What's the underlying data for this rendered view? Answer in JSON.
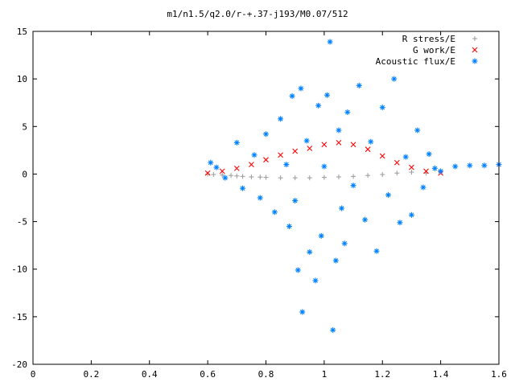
{
  "chart_data": {
    "type": "scatter",
    "title": "m1/n1.5/q2.0/r-+.37-j193/M0.07/512",
    "xlabel": "",
    "ylabel": "",
    "xlim": [
      0,
      1.6
    ],
    "ylim": [
      -20,
      15
    ],
    "xticks": [
      "0",
      "0.2",
      "0.4",
      "0.6",
      "0.8",
      "1",
      "1.2",
      "1.4",
      "1.6"
    ],
    "yticks": [
      "-20",
      "-15",
      "-10",
      "-5",
      "0",
      "5",
      "10",
      "15"
    ],
    "legend_position": "top-right",
    "series": [
      {
        "name": "R stress/E",
        "marker": "plus",
        "color": "#a0a0a0",
        "points": [
          [
            0.6,
            0.0
          ],
          [
            0.62,
            -0.05
          ],
          [
            0.65,
            -0.1
          ],
          [
            0.68,
            -0.15
          ],
          [
            0.7,
            -0.2
          ],
          [
            0.72,
            -0.25
          ],
          [
            0.75,
            -0.3
          ],
          [
            0.78,
            -0.32
          ],
          [
            0.8,
            -0.35
          ],
          [
            0.85,
            -0.4
          ],
          [
            0.9,
            -0.4
          ],
          [
            0.95,
            -0.4
          ],
          [
            1.0,
            -0.35
          ],
          [
            1.05,
            -0.3
          ],
          [
            1.1,
            -0.25
          ],
          [
            1.15,
            -0.15
          ],
          [
            1.2,
            -0.05
          ],
          [
            1.25,
            0.1
          ],
          [
            1.3,
            0.2
          ],
          [
            1.35,
            0.1
          ]
        ]
      },
      {
        "name": "G work/E",
        "marker": "cross",
        "color": "#ff0000",
        "points": [
          [
            0.6,
            0.1
          ],
          [
            0.65,
            0.3
          ],
          [
            0.7,
            0.6
          ],
          [
            0.75,
            1.0
          ],
          [
            0.8,
            1.5
          ],
          [
            0.85,
            2.0
          ],
          [
            0.9,
            2.4
          ],
          [
            0.95,
            2.7
          ],
          [
            1.0,
            3.1
          ],
          [
            1.05,
            3.3
          ],
          [
            1.1,
            3.1
          ],
          [
            1.15,
            2.6
          ],
          [
            1.2,
            1.9
          ],
          [
            1.25,
            1.2
          ],
          [
            1.3,
            0.7
          ],
          [
            1.35,
            0.3
          ],
          [
            1.4,
            0.1
          ]
        ]
      },
      {
        "name": "Acoustic flux/E",
        "marker": "star",
        "color": "#0080ff",
        "points": [
          [
            0.61,
            1.2
          ],
          [
            0.63,
            0.7
          ],
          [
            0.66,
            -0.4
          ],
          [
            0.7,
            3.3
          ],
          [
            0.72,
            -1.5
          ],
          [
            0.76,
            2.0
          ],
          [
            0.78,
            -2.5
          ],
          [
            0.8,
            4.2
          ],
          [
            0.83,
            -4.0
          ],
          [
            0.85,
            5.8
          ],
          [
            0.87,
            1.0
          ],
          [
            0.88,
            -5.5
          ],
          [
            0.89,
            8.2
          ],
          [
            0.9,
            -2.8
          ],
          [
            0.91,
            -10.1
          ],
          [
            0.92,
            9.0
          ],
          [
            0.925,
            -14.5
          ],
          [
            0.94,
            3.5
          ],
          [
            0.95,
            -8.2
          ],
          [
            0.97,
            -11.2
          ],
          [
            0.98,
            7.2
          ],
          [
            0.99,
            -6.5
          ],
          [
            1.0,
            0.8
          ],
          [
            1.01,
            8.3
          ],
          [
            1.02,
            13.9
          ],
          [
            1.03,
            -16.4
          ],
          [
            1.04,
            -9.1
          ],
          [
            1.05,
            4.6
          ],
          [
            1.06,
            -3.6
          ],
          [
            1.07,
            -7.3
          ],
          [
            1.08,
            6.5
          ],
          [
            1.1,
            -1.2
          ],
          [
            1.12,
            9.3
          ],
          [
            1.14,
            -4.8
          ],
          [
            1.16,
            3.4
          ],
          [
            1.18,
            -8.1
          ],
          [
            1.2,
            7.0
          ],
          [
            1.22,
            -2.2
          ],
          [
            1.24,
            10.0
          ],
          [
            1.26,
            -5.1
          ],
          [
            1.28,
            1.8
          ],
          [
            1.3,
            -4.3
          ],
          [
            1.32,
            4.6
          ],
          [
            1.34,
            -1.4
          ],
          [
            1.36,
            2.1
          ],
          [
            1.38,
            0.6
          ],
          [
            1.4,
            0.3
          ],
          [
            1.45,
            0.8
          ],
          [
            1.5,
            0.9
          ],
          [
            1.55,
            0.9
          ],
          [
            1.6,
            1.0
          ]
        ]
      }
    ]
  }
}
